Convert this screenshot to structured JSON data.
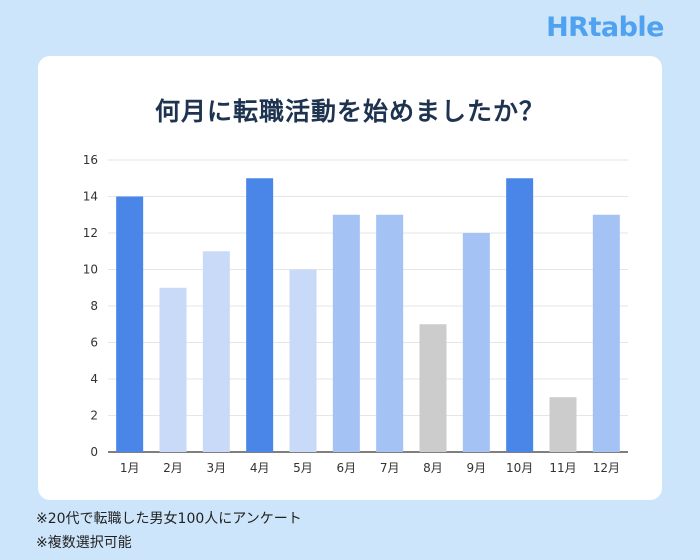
{
  "brand": "HRtable",
  "notes": [
    "※20代で転職した男女100人にアンケート",
    "※複数選択可能"
  ],
  "chart_data": {
    "type": "bar",
    "title": "何月に転職活動を始めましたか？",
    "categories": [
      "1月",
      "2月",
      "3月",
      "4月",
      "5月",
      "6月",
      "7月",
      "8月",
      "9月",
      "10月",
      "11月",
      "12月"
    ],
    "values": [
      14,
      9,
      11,
      15,
      10,
      13,
      13,
      7,
      12,
      15,
      3,
      13
    ],
    "bar_colors": [
      "#4a86e8",
      "#c9daf8",
      "#c9daf8",
      "#4a86e8",
      "#c9daf8",
      "#a4c2f4",
      "#a4c2f4",
      "#cccccc",
      "#a4c2f4",
      "#4a86e8",
      "#cccccc",
      "#a4c2f4"
    ],
    "ylim": [
      0,
      16
    ],
    "yticks": [
      0,
      2,
      4,
      6,
      8,
      10,
      12,
      14,
      16
    ],
    "grid": true
  }
}
